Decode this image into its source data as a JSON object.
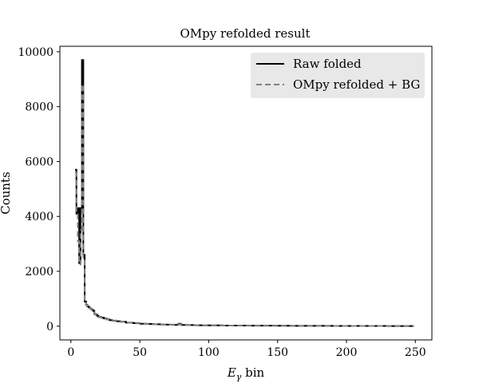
{
  "chart_data": {
    "type": "line",
    "title": "OMpy refolded result",
    "xlabel": "E",
    "xlabel_sub": "γ",
    "xlabel_rest": " bin",
    "ylabel": "Counts",
    "xlim": [
      -8,
      262
    ],
    "ylim": [
      -500,
      10200
    ],
    "xticks": [
      0,
      50,
      100,
      150,
      200,
      250
    ],
    "yticks": [
      0,
      2000,
      4000,
      6000,
      8000,
      10000
    ],
    "grid": false,
    "legend_position": "top-right",
    "series": [
      {
        "name": "Raw folded",
        "color": "#000000",
        "style": "solid",
        "x": [
          3,
          4,
          5,
          6,
          7,
          8,
          9,
          10,
          11,
          12,
          13,
          14,
          15,
          16,
          17,
          18,
          19,
          20,
          22,
          24,
          26,
          28,
          30,
          33,
          36,
          40,
          45,
          50,
          55,
          60,
          65,
          70,
          75,
          78,
          80,
          85,
          90,
          95,
          100,
          110,
          120,
          130,
          140,
          150,
          160,
          170,
          180,
          190,
          200,
          210,
          220,
          230,
          240,
          249
        ],
        "y": [
          5700,
          4100,
          4300,
          2300,
          4300,
          9700,
          2600,
          900,
          780,
          720,
          680,
          640,
          600,
          560,
          450,
          420,
          380,
          340,
          310,
          280,
          250,
          220,
          200,
          180,
          160,
          130,
          110,
          90,
          80,
          70,
          60,
          55,
          50,
          90,
          45,
          40,
          35,
          32,
          30,
          25,
          22,
          20,
          18,
          15,
          14,
          12,
          11,
          10,
          9,
          8,
          7,
          6,
          5,
          5
        ]
      },
      {
        "name": "OMpy refolded + BG",
        "color": "#808080",
        "style": "dashed",
        "x": [
          3,
          4,
          5,
          6,
          7,
          8,
          9,
          10,
          11,
          12,
          13,
          14,
          15,
          16,
          17,
          18,
          19,
          20,
          22,
          24,
          26,
          28,
          30,
          33,
          36,
          40,
          45,
          50,
          55,
          60,
          65,
          70,
          75,
          78,
          80,
          85,
          90,
          95,
          100,
          110,
          120,
          130,
          140,
          150,
          160,
          170,
          180,
          190,
          200,
          210,
          220,
          230,
          240,
          249
        ],
        "y": [
          5600,
          4150,
          3100,
          2250,
          3500,
          8800,
          2500,
          880,
          770,
          710,
          670,
          630,
          590,
          550,
          440,
          410,
          370,
          330,
          300,
          270,
          240,
          215,
          195,
          175,
          155,
          125,
          105,
          88,
          78,
          68,
          58,
          52,
          48,
          70,
          44,
          39,
          34,
          31,
          29,
          24,
          21,
          19,
          17,
          15,
          13,
          12,
          11,
          10,
          9,
          8,
          7,
          6,
          5,
          5
        ]
      }
    ]
  }
}
